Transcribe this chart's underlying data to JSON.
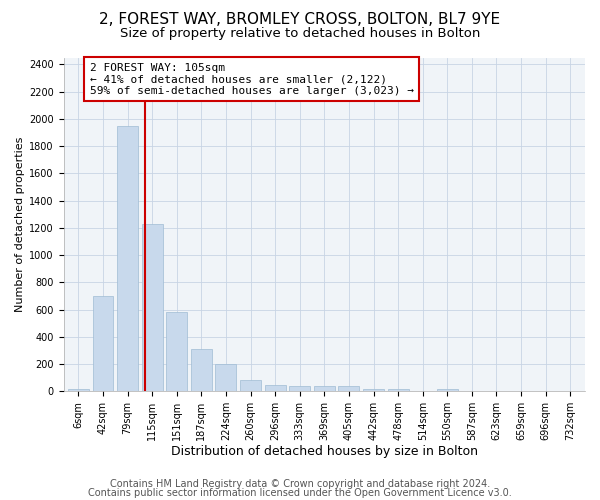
{
  "title1": "2, FOREST WAY, BROMLEY CROSS, BOLTON, BL7 9YE",
  "title2": "Size of property relative to detached houses in Bolton",
  "xlabel": "Distribution of detached houses by size in Bolton",
  "ylabel": "Number of detached properties",
  "categories": [
    "6sqm",
    "42sqm",
    "79sqm",
    "115sqm",
    "151sqm",
    "187sqm",
    "224sqm",
    "260sqm",
    "296sqm",
    "333sqm",
    "369sqm",
    "405sqm",
    "442sqm",
    "478sqm",
    "514sqm",
    "550sqm",
    "587sqm",
    "623sqm",
    "659sqm",
    "696sqm",
    "732sqm"
  ],
  "values": [
    20,
    700,
    1950,
    1230,
    580,
    310,
    200,
    85,
    45,
    40,
    35,
    35,
    20,
    20,
    5,
    20,
    3,
    2,
    2,
    2,
    2
  ],
  "bar_color": "#c8d9ec",
  "bar_edge_color": "#a0bcd4",
  "vline_color": "#cc0000",
  "annotation_text": "2 FOREST WAY: 105sqm\n← 41% of detached houses are smaller (2,122)\n59% of semi-detached houses are larger (3,023) →",
  "annotation_box_color": "#ffffff",
  "annotation_box_edge": "#cc0000",
  "ylim": [
    0,
    2450
  ],
  "yticks": [
    0,
    200,
    400,
    600,
    800,
    1000,
    1200,
    1400,
    1600,
    1800,
    2000,
    2200,
    2400
  ],
  "footer1": "Contains HM Land Registry data © Crown copyright and database right 2024.",
  "footer2": "Contains public sector information licensed under the Open Government Licence v3.0.",
  "bg_color": "#ffffff",
  "plot_bg_color": "#f0f4f8",
  "grid_color": "#c8d4e4",
  "title1_fontsize": 11,
  "title2_fontsize": 9.5,
  "xlabel_fontsize": 9,
  "ylabel_fontsize": 8,
  "tick_fontsize": 7,
  "annotation_fontsize": 8,
  "footer_fontsize": 7
}
